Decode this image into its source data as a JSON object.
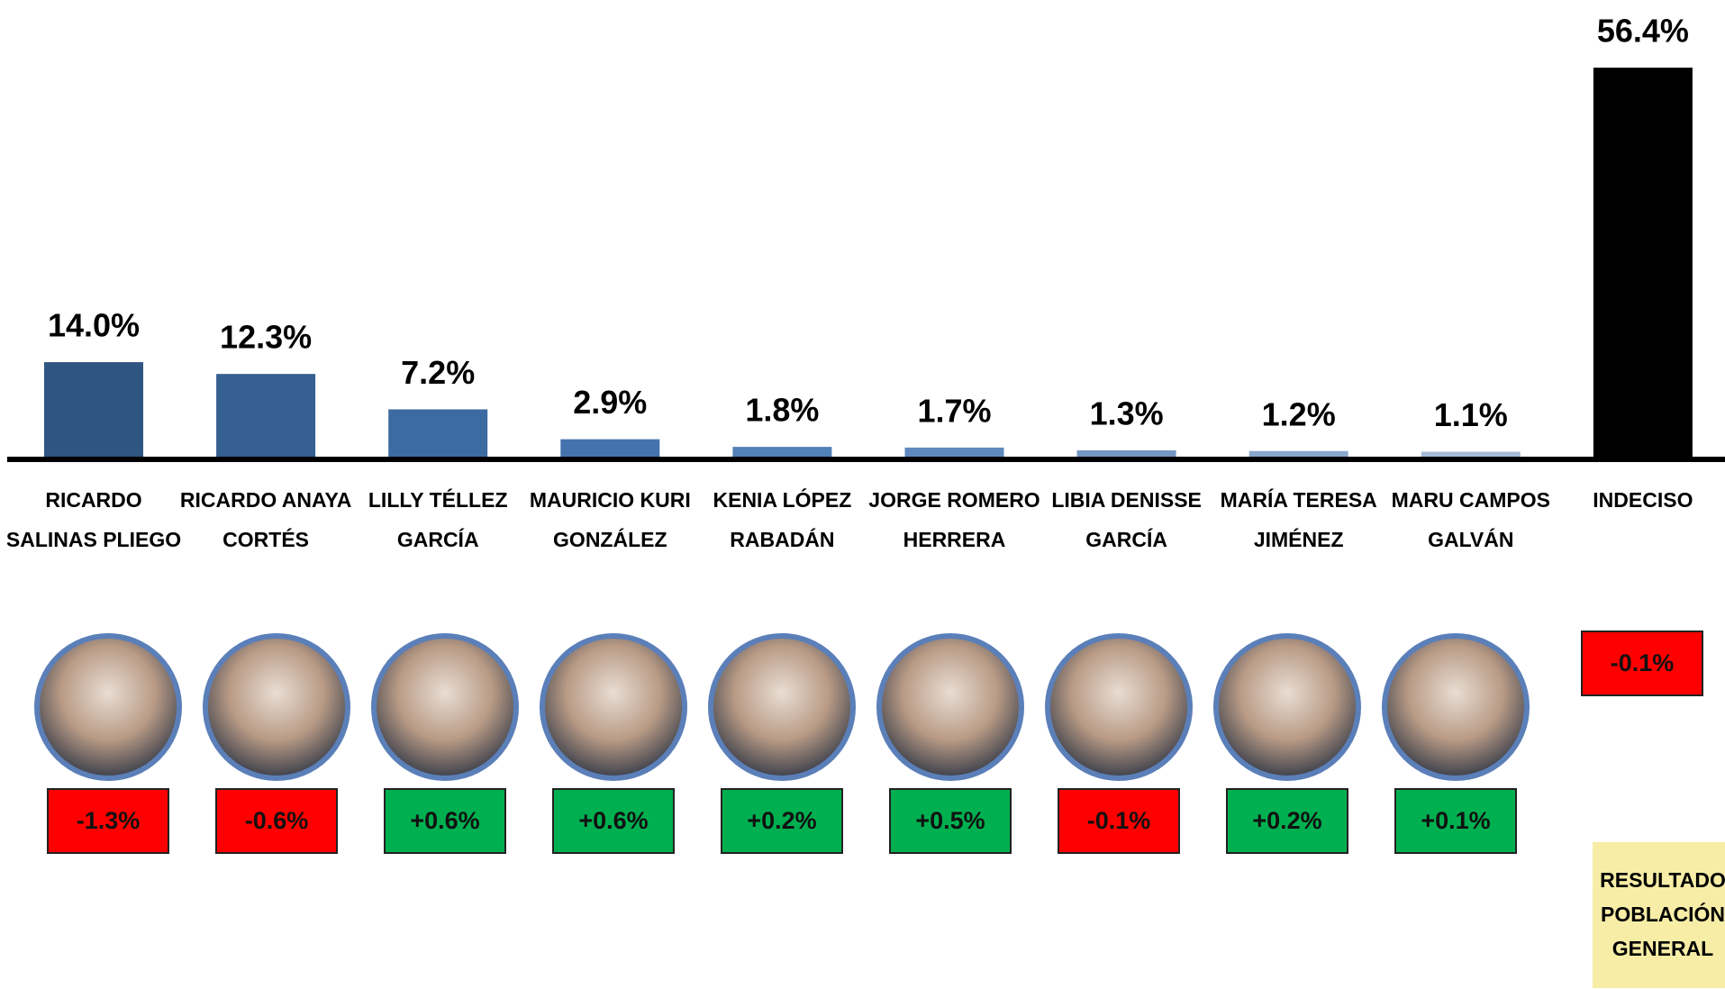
{
  "chart_data": {
    "type": "bar",
    "categories": [
      [
        "RICARDO",
        "SALINAS PLIEGO"
      ],
      [
        "RICARDO ANAYA",
        "CORTÉS"
      ],
      [
        "LILLY TÉLLEZ",
        "GARCÍA"
      ],
      [
        "MAURICIO KURI",
        "GONZÁLEZ"
      ],
      [
        "KENIA LÓPEZ",
        "RABADÁN"
      ],
      [
        "JORGE ROMERO",
        "HERRERA"
      ],
      [
        "LIBIA DENISSE",
        "GARCÍA"
      ],
      [
        "MARÍA TERESA",
        "JIMÉNEZ"
      ],
      [
        "MARU CAMPOS",
        "GALVÁN"
      ],
      [
        "INDECISO"
      ]
    ],
    "values": [
      14.0,
      12.3,
      7.2,
      2.9,
      1.8,
      1.7,
      1.3,
      1.2,
      1.1,
      56.4
    ],
    "value_labels": [
      "14.0%",
      "12.3%",
      "7.2%",
      "2.9%",
      "1.8%",
      "1.7%",
      "1.3%",
      "1.2%",
      "1.1%",
      "56.4%"
    ],
    "colors": [
      "#2f5583",
      "#365f92",
      "#3e6aa2",
      "#4673ae",
      "#5280b8",
      "#6089bd",
      "#7597c4",
      "#8ba8cd",
      "#a6bcd8",
      "#000000"
    ],
    "changes": [
      -1.3,
      -0.6,
      0.6,
      0.6,
      0.2,
      0.5,
      -0.1,
      0.2,
      0.1,
      -0.1
    ],
    "change_labels": [
      "-1.3%",
      "-0.6%",
      "+0.6%",
      "+0.6%",
      "+0.2%",
      "+0.5%",
      "-0.1%",
      "+0.2%",
      "+0.1%",
      "-0.1%"
    ],
    "note": [
      "RESULTADO",
      "POBLACIÓN",
      "GENERAL"
    ]
  }
}
